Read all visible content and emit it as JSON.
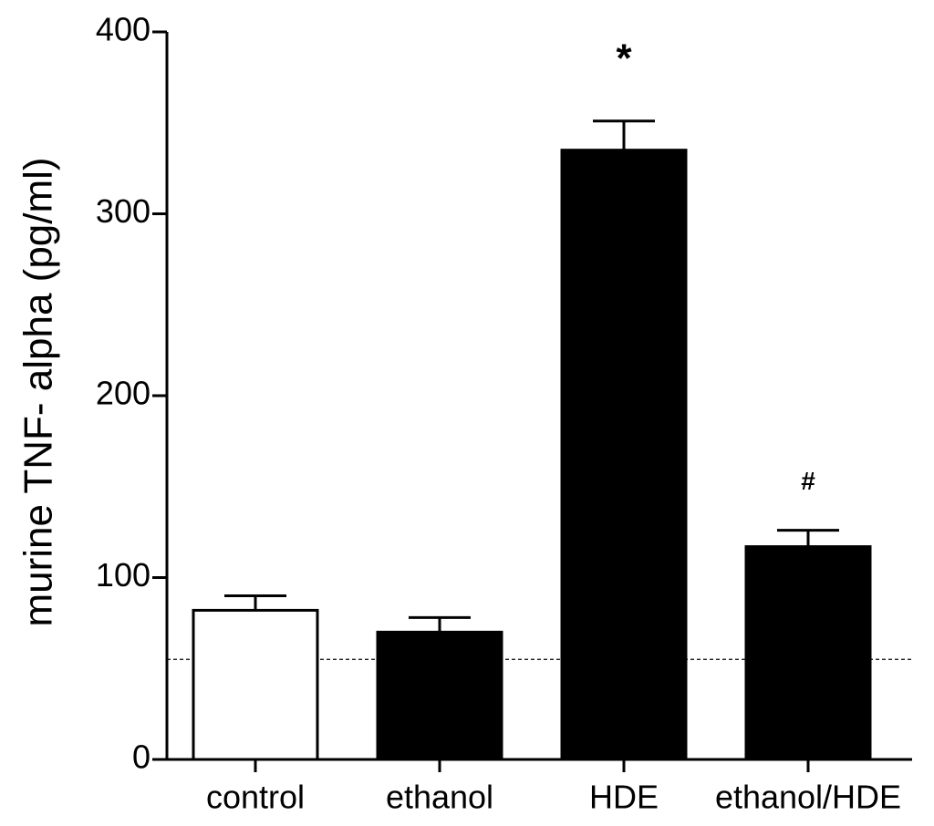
{
  "chart_data": {
    "type": "bar",
    "ylabel": "murine TNF- alpha (pg/ml)",
    "categories": [
      "control",
      "ethanol",
      "HDE",
      "ethanol/HDE"
    ],
    "values": [
      82,
      70,
      335,
      117
    ],
    "errors": [
      8,
      8,
      16,
      9
    ],
    "colors": [
      "#ffffff",
      "#000000",
      "#000000",
      "#000000"
    ],
    "edge_color": "#000000",
    "reference_line": 55,
    "annotations": [
      {
        "text": "*",
        "x": "HDE"
      },
      {
        "text": "#",
        "x": "ethanol/HDE"
      }
    ],
    "ylim": [
      0,
      400
    ],
    "yticks": [
      0,
      100,
      200,
      300,
      400
    ],
    "grid": false
  }
}
